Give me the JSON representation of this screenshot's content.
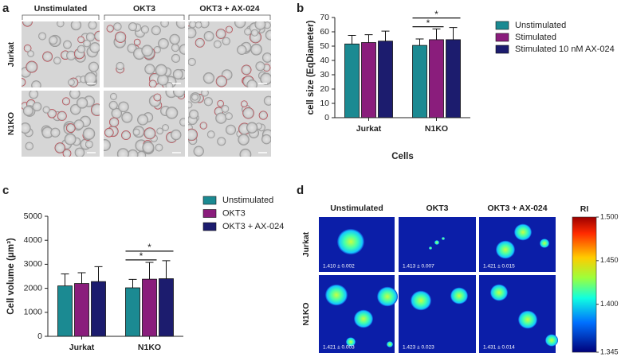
{
  "panel_labels": [
    "a",
    "b",
    "c",
    "d"
  ],
  "microscopy": {
    "columns": [
      "Unstimulated",
      "OKT3",
      "OKT3 + AX-024"
    ],
    "rows": [
      "Jurkat",
      "N1KO"
    ]
  },
  "ri_imaging": {
    "columns": [
      "Unstimulated",
      "OKT3",
      "OKT3 + AX-024"
    ],
    "rows": [
      "Jurkat",
      "N1KO"
    ],
    "cell_values": [
      [
        "1.410 ± 0.002",
        "1.413 ± 0.007",
        "1.421 ± 0.015"
      ],
      [
        "1.421 ± 0.003",
        "1.423 ± 0.023",
        "1.431 ± 0.014"
      ]
    ],
    "colorbar": {
      "label": "RI",
      "lim": [
        1.345,
        1.5
      ],
      "ticks": [
        {
          "value": 1.5,
          "label": "1.500"
        },
        {
          "value": 1.45,
          "label": "1.450"
        },
        {
          "value": 1.4,
          "label": "1.400"
        },
        {
          "value": 1.345,
          "label": "1.345"
        }
      ]
    }
  },
  "chart_data": [
    {
      "type": "bar",
      "y_label": "cell size (EqDiameter)",
      "x_label": "Cells",
      "categories": [
        "Jurkat",
        "N1KO"
      ],
      "series": [
        {
          "name": "Unstimulated",
          "color": "#1b8a92",
          "values": [
            51.5,
            50.5
          ],
          "errors": [
            6,
            4.5
          ]
        },
        {
          "name": "Stimulated",
          "color": "#8a1d7c",
          "values": [
            52.5,
            54.5
          ],
          "errors": [
            5.5,
            7.5
          ]
        },
        {
          "name": "Stimulated 10 nM AX-024",
          "color": "#1c1c6e",
          "values": [
            53.5,
            54.5
          ],
          "errors": [
            7,
            8.5
          ]
        }
      ],
      "ylim": [
        0,
        70
      ],
      "yticks": [
        0,
        10,
        20,
        30,
        40,
        50,
        60,
        70
      ],
      "significance": [
        {
          "category": "N1KO",
          "between": [
            "Unstimulated",
            "Stimulated"
          ],
          "label": "*"
        },
        {
          "category": "N1KO",
          "between": [
            "Unstimulated",
            "Stimulated 10 nM AX-024"
          ],
          "label": "*"
        }
      ]
    },
    {
      "type": "bar",
      "y_label": "Cell volume (μm³)",
      "categories": [
        "Jurkat",
        "N1KO"
      ],
      "series": [
        {
          "name": "Unstimulated",
          "color": "#1b8a92",
          "values": [
            2100,
            2020
          ],
          "errors": [
            500,
            350
          ]
        },
        {
          "name": "OKT3",
          "color": "#8a1d7c",
          "values": [
            2200,
            2380
          ],
          "errors": [
            450,
            700
          ]
        },
        {
          "name": "OKT3 + AX-024",
          "color": "#1c1c6e",
          "values": [
            2280,
            2400
          ],
          "errors": [
            620,
            750
          ]
        }
      ],
      "ylim": [
        0,
        5000
      ],
      "yticks": [
        0,
        1000,
        2000,
        3000,
        4000,
        5000
      ],
      "significance": [
        {
          "category": "N1KO",
          "between": [
            "Unstimulated",
            "OKT3"
          ],
          "label": "*"
        },
        {
          "category": "N1KO",
          "between": [
            "Unstimulated",
            "OKT3 + AX-024"
          ],
          "label": "*"
        }
      ]
    }
  ]
}
